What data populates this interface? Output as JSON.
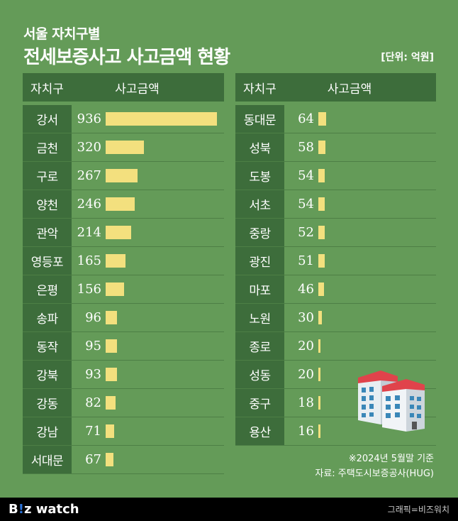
{
  "header": {
    "subtitle": "서울 자치구별",
    "title": "전세보증사고 사고금액 현황",
    "unit": "[단위: 억원]"
  },
  "table_headers": {
    "district": "자치구",
    "amount": "사고금액"
  },
  "chart_data": {
    "type": "bar",
    "orientation": "horizontal",
    "title": "전세보증사고 사고금액 현황",
    "subtitle": "서울 자치구별",
    "unit": "억원",
    "max_value": 936,
    "categories": [
      "강서",
      "금천",
      "구로",
      "양천",
      "관악",
      "영등포",
      "은평",
      "송파",
      "동작",
      "강북",
      "강동",
      "강남",
      "서대문",
      "동대문",
      "성북",
      "도봉",
      "서초",
      "중랑",
      "광진",
      "마포",
      "노원",
      "종로",
      "성동",
      "중구",
      "용산"
    ],
    "values": [
      936,
      320,
      267,
      246,
      214,
      165,
      156,
      96,
      95,
      93,
      82,
      71,
      67,
      64,
      58,
      54,
      54,
      52,
      51,
      46,
      30,
      20,
      20,
      18,
      16
    ],
    "left_column": [
      {
        "district": "강서",
        "value": 936
      },
      {
        "district": "금천",
        "value": 320
      },
      {
        "district": "구로",
        "value": 267
      },
      {
        "district": "양천",
        "value": 246
      },
      {
        "district": "관악",
        "value": 214
      },
      {
        "district": "영등포",
        "value": 165
      },
      {
        "district": "은평",
        "value": 156
      },
      {
        "district": "송파",
        "value": 96
      },
      {
        "district": "동작",
        "value": 95
      },
      {
        "district": "강북",
        "value": 93
      },
      {
        "district": "강동",
        "value": 82
      },
      {
        "district": "강남",
        "value": 71
      },
      {
        "district": "서대문",
        "value": 67
      }
    ],
    "right_column": [
      {
        "district": "동대문",
        "value": 64
      },
      {
        "district": "성북",
        "value": 58
      },
      {
        "district": "도봉",
        "value": 54
      },
      {
        "district": "서초",
        "value": 54
      },
      {
        "district": "중랑",
        "value": 52
      },
      {
        "district": "광진",
        "value": 51
      },
      {
        "district": "마포",
        "value": 46
      },
      {
        "district": "노원",
        "value": 30
      },
      {
        "district": "종로",
        "value": 20
      },
      {
        "district": "성동",
        "value": 20
      },
      {
        "district": "중구",
        "value": 18
      },
      {
        "district": "용산",
        "value": 16
      }
    ],
    "bar_color": "#f3e07e"
  },
  "footer": {
    "note": "※2024년 5월말 기준",
    "source": "자료: 주택도시보증공사(HUG)",
    "logo_b": "B",
    "logo_i": "!",
    "logo_z": "z",
    "logo_watch": " watch",
    "credit": "그래픽=비즈워치"
  },
  "colors": {
    "background": "#649b58",
    "header_cell": "#3d6d3b",
    "bar": "#f3e07e"
  }
}
